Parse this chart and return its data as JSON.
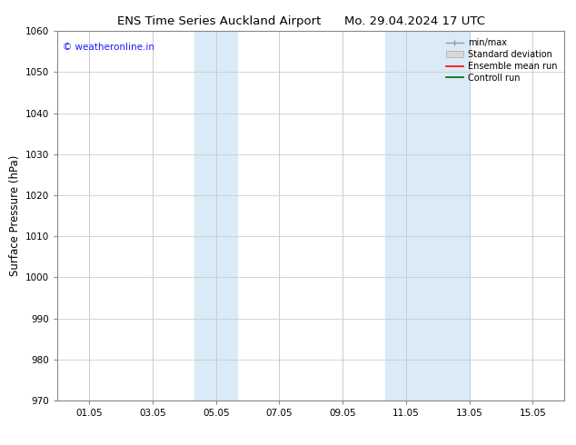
{
  "title_left": "ENS Time Series Auckland Airport",
  "title_right": "Mo. 29.04.2024 17 UTC",
  "ylabel": "Surface Pressure (hPa)",
  "ylim": [
    970,
    1060
  ],
  "yticks": [
    970,
    980,
    990,
    1000,
    1010,
    1020,
    1030,
    1040,
    1050,
    1060
  ],
  "xtick_labels": [
    "01.05",
    "03.05",
    "05.05",
    "07.05",
    "09.05",
    "11.05",
    "13.05",
    "15.05"
  ],
  "xtick_positions": [
    1,
    3,
    5,
    7,
    9,
    11,
    13,
    15
  ],
  "xlim": [
    0.0,
    16.0
  ],
  "shaded_regions": [
    {
      "x_start": 4.33,
      "x_end": 5.0,
      "color": "#daeaf7"
    },
    {
      "x_start": 5.0,
      "x_end": 5.67,
      "color": "#daeaf7"
    },
    {
      "x_start": 10.33,
      "x_end": 11.0,
      "color": "#daeaf7"
    },
    {
      "x_start": 11.0,
      "x_end": 12.33,
      "color": "#daeaf7"
    },
    {
      "x_start": 12.33,
      "x_end": 13.0,
      "color": "#daeaf7"
    }
  ],
  "watermark_text": "© weatheronline.in",
  "watermark_color": "#1a1aff",
  "legend_labels": [
    "min/max",
    "Standard deviation",
    "Ensemble mean run",
    "Controll run"
  ],
  "legend_colors_line": [
    "#999999",
    "#bbbbbb",
    "#ff0000",
    "#006600"
  ],
  "background_color": "#ffffff",
  "grid_color": "#cccccc",
  "title_fontsize": 9.5,
  "tick_fontsize": 7.5,
  "label_fontsize": 8.5,
  "watermark_fontsize": 7.5,
  "legend_fontsize": 7.0
}
